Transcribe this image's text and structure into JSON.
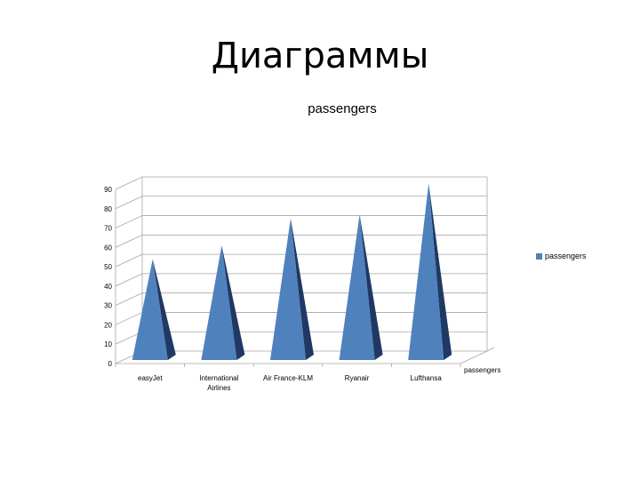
{
  "slide": {
    "title": "Диаграммы"
  },
  "chart_data": {
    "type": "bar",
    "bar_shape": "cone/pyramid 3D",
    "title": "passengers",
    "categories": [
      "easyJet",
      "International Airlines",
      "Air France-KLM",
      "Ryanair",
      "Lufthansa"
    ],
    "category_labels": [
      [
        "easyJet"
      ],
      [
        "International",
        "Airlines"
      ],
      [
        "Air France-KLM"
      ],
      [
        "Ryanair"
      ],
      [
        "Lufthansa"
      ]
    ],
    "series": [
      {
        "name": "passengers",
        "values": [
          54,
          61,
          75,
          77,
          93
        ]
      }
    ],
    "depth_axis_label": "passengers",
    "ylim": [
      0,
      90
    ],
    "yticks": [
      0,
      10,
      20,
      30,
      40,
      50,
      60,
      70,
      80,
      90
    ],
    "grid": true,
    "legend": "right",
    "colors": {
      "front": "#4F81BD",
      "side": "#1F3864",
      "grid": "#a6a6a6"
    }
  }
}
